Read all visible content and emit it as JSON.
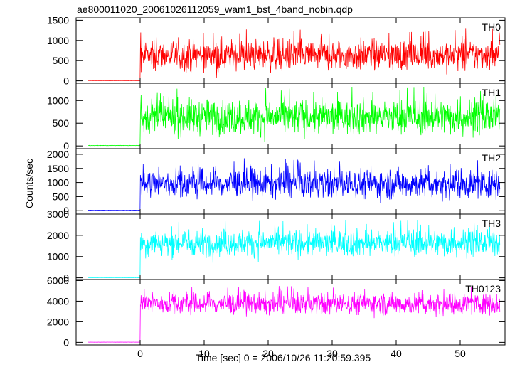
{
  "title": "ae800011020_20061026112059_wam1_bst_4band_nobin.qdp",
  "ylabel": "Counts/sec",
  "xlabel": "Time [sec] 0 = 2006/10/26 11:20:59.395",
  "chart_data": {
    "type": "line",
    "title": "ae800011020_20061026112059_wam1_bst_4band_nobin.qdp",
    "xlabel": "Time [sec] 0 = 2006/10/26 11:20:59.395",
    "ylabel": "Counts/sec",
    "xlim": [
      -10,
      57
    ],
    "xticks": [
      0,
      10,
      20,
      30,
      40,
      50
    ],
    "x_range_data": [
      -8.1,
      56.2
    ],
    "onset_time": 0,
    "panels": [
      {
        "name": "TH0",
        "color": "#ff0000",
        "ylim": [
          -60,
          1560
        ],
        "yticks": [
          0,
          500,
          1000,
          1500
        ],
        "pre_level": 5,
        "mean": 630,
        "spread": 190,
        "max": 1500
      },
      {
        "name": "TH1",
        "color": "#00ff00",
        "ylim": [
          -60,
          1380
        ],
        "yticks": [
          0,
          500,
          1000
        ],
        "pre_level": 10,
        "mean": 640,
        "spread": 190,
        "max": 1320
      },
      {
        "name": "TH2",
        "color": "#0000ff",
        "ylim": [
          -120,
          2200
        ],
        "yticks": [
          0,
          500,
          1000,
          1500,
          2000
        ],
        "pre_level": 15,
        "mean": 960,
        "spread": 260,
        "max": 2000
      },
      {
        "name": "TH3",
        "color": "#00ffff",
        "ylim": [
          -80,
          3000
        ],
        "yticks": [
          0,
          1000,
          2000,
          3000
        ],
        "pre_level": 10,
        "mean": 1650,
        "spread": 310,
        "max": 2850
      },
      {
        "name": "TH0123",
        "color": "#ff00ff",
        "ylim": [
          -250,
          6100
        ],
        "yticks": [
          0,
          2000,
          4000,
          6000
        ],
        "pre_level": 20,
        "mean": 3750,
        "spread": 520,
        "max": 5800
      }
    ]
  }
}
